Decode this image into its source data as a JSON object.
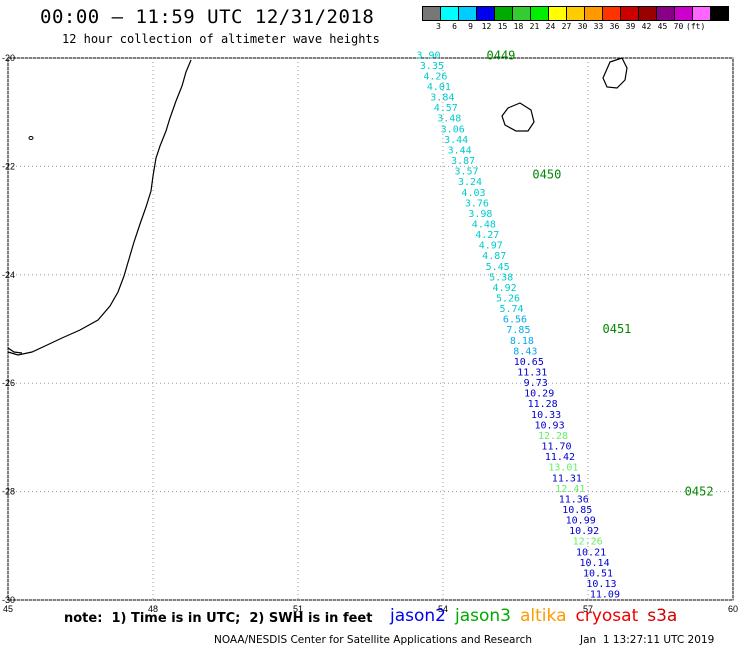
{
  "header": {
    "title": "00:00 — 11:59 UTC 12/31/2018",
    "subtitle": "12 hour collection of altimeter wave heights"
  },
  "scale": {
    "unit": "(ft)",
    "colors": [
      "#777777",
      "#00ffff",
      "#00ccff",
      "#0000ee",
      "#00aa00",
      "#33cc33",
      "#00ee00",
      "#ffff00",
      "#ffcc00",
      "#ff9900",
      "#ff3300",
      "#cc0000",
      "#990000",
      "#880088",
      "#cc00cc",
      "#ff66ff",
      "#000000"
    ],
    "labels": [
      "3",
      "6",
      "9",
      "12",
      "15",
      "18",
      "21",
      "24",
      "27",
      "30",
      "33",
      "36",
      "39",
      "42",
      "45",
      "70"
    ]
  },
  "map": {
    "lon_ticks": [
      "45",
      "48",
      "51",
      "54",
      "57",
      "60"
    ],
    "lat_ticks": [
      "-20",
      "-22",
      "-24",
      "-26",
      "-28",
      "-30"
    ],
    "pass_times": [
      {
        "label": "0449",
        "lon": 54.9,
        "lat": -19.95
      },
      {
        "label": "0450",
        "lon": 55.85,
        "lat": -22.15
      },
      {
        "label": "0451",
        "lon": 57.3,
        "lat": -25.0
      },
      {
        "label": "0452",
        "lon": 59.0,
        "lat": -28.0
      }
    ],
    "readings": [
      {
        "v": "3.90",
        "c": "#00cccc"
      },
      {
        "v": "3.35",
        "c": "#00cccc"
      },
      {
        "v": "4.26",
        "c": "#00cccc"
      },
      {
        "v": "4.01",
        "c": "#00cccc"
      },
      {
        "v": "3.84",
        "c": "#00cccc"
      },
      {
        "v": "4.57",
        "c": "#00cccc"
      },
      {
        "v": "3.48",
        "c": "#00cccc"
      },
      {
        "v": "3.06",
        "c": "#00cccc"
      },
      {
        "v": "3.44",
        "c": "#00cccc"
      },
      {
        "v": "3.44",
        "c": "#00cccc"
      },
      {
        "v": "3.87",
        "c": "#00cccc"
      },
      {
        "v": "3.57",
        "c": "#00cccc"
      },
      {
        "v": "3.24",
        "c": "#00cccc"
      },
      {
        "v": "4.03",
        "c": "#00cccc"
      },
      {
        "v": "3.76",
        "c": "#00cccc"
      },
      {
        "v": "3.98",
        "c": "#00cccc"
      },
      {
        "v": "4.48",
        "c": "#00cccc"
      },
      {
        "v": "4.27",
        "c": "#00cccc"
      },
      {
        "v": "4.97",
        "c": "#00cccc"
      },
      {
        "v": "4.87",
        "c": "#00cccc"
      },
      {
        "v": "5.45",
        "c": "#00cccc"
      },
      {
        "v": "5.38",
        "c": "#00cccc"
      },
      {
        "v": "4.92",
        "c": "#00cccc"
      },
      {
        "v": "5.26",
        "c": "#00cccc"
      },
      {
        "v": "5.74",
        "c": "#00cccc"
      },
      {
        "v": "6.56",
        "c": "#00aaee"
      },
      {
        "v": "7.85",
        "c": "#00aaee"
      },
      {
        "v": "8.18",
        "c": "#00aaee"
      },
      {
        "v": "8.43",
        "c": "#00aaee"
      },
      {
        "v": "10.65",
        "c": "#0000cc"
      },
      {
        "v": "11.31",
        "c": "#0000cc"
      },
      {
        "v": "9.73",
        "c": "#0000cc"
      },
      {
        "v": "10.29",
        "c": "#0000cc"
      },
      {
        "v": "11.28",
        "c": "#0000cc"
      },
      {
        "v": "10.33",
        "c": "#0000cc"
      },
      {
        "v": "10.93",
        "c": "#0000cc"
      },
      {
        "v": "12.28",
        "c": "#66ee66"
      },
      {
        "v": "11.70",
        "c": "#0000cc"
      },
      {
        "v": "11.42",
        "c": "#0000cc"
      },
      {
        "v": "13.01",
        "c": "#66ee66"
      },
      {
        "v": "11.31",
        "c": "#0000cc"
      },
      {
        "v": "12.41",
        "c": "#66ee66"
      },
      {
        "v": "11.36",
        "c": "#0000cc"
      },
      {
        "v": "10.85",
        "c": "#0000cc"
      },
      {
        "v": "10.99",
        "c": "#0000cc"
      },
      {
        "v": "10.92",
        "c": "#0000cc"
      },
      {
        "v": "12.26",
        "c": "#66ee66"
      },
      {
        "v": "10.21",
        "c": "#0000cc"
      },
      {
        "v": "10.14",
        "c": "#0000cc"
      },
      {
        "v": "10.51",
        "c": "#0000cc"
      },
      {
        "v": "10.13",
        "c": "#0000cc"
      },
      {
        "v": "11.09",
        "c": "#0000cc"
      }
    ]
  },
  "note": "note:  1) Time is in UTC;  2) SWH is in feet",
  "legend": [
    {
      "label": "jason2",
      "color": "#0000ee"
    },
    {
      "label": "jason3",
      "color": "#00aa00"
    },
    {
      "label": "altika",
      "color": "#ff9900"
    },
    {
      "label": "cryosat",
      "color": "#ee0000"
    },
    {
      "label": "s3a",
      "color": "#cc0000"
    }
  ],
  "footer": {
    "credit": "NOAA/NESDIS Center for Satellite Applications and Research",
    "timestamp": "Jan  1 13:27:11 UTC 2019"
  }
}
